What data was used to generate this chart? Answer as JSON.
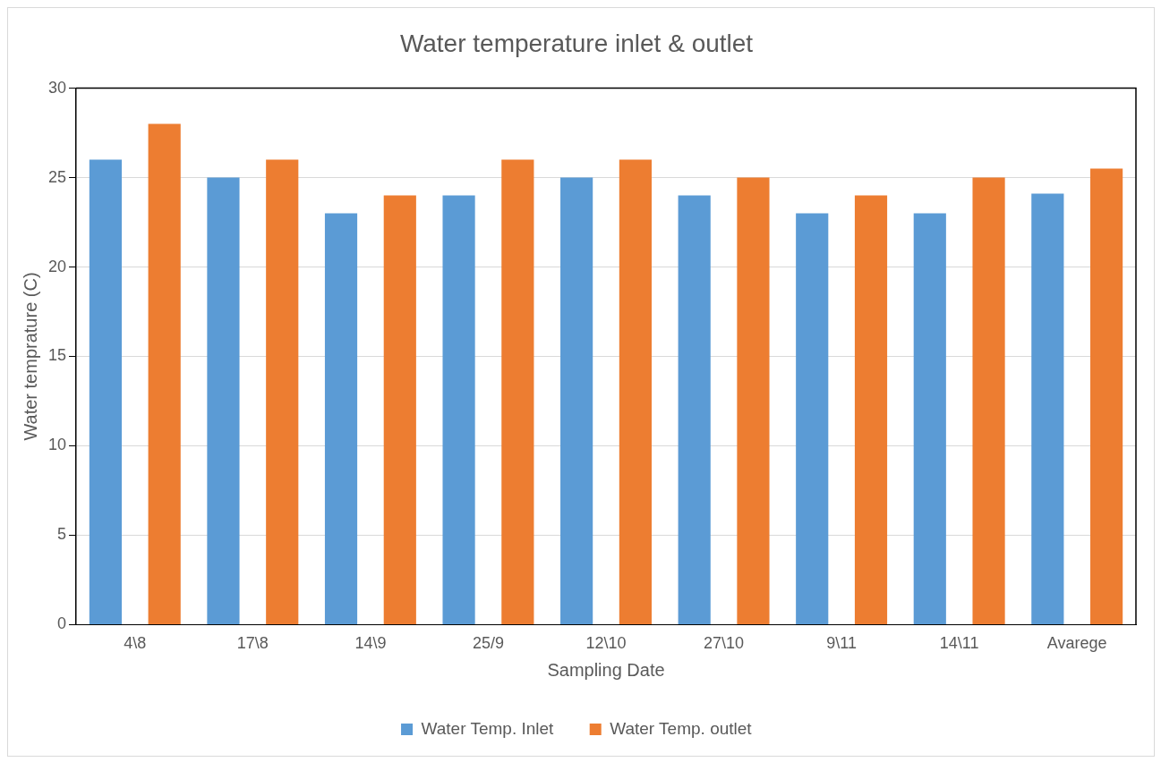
{
  "chart_data": {
    "type": "bar",
    "title": "Water temperature inlet & outlet",
    "xlabel": "Sampling Date",
    "ylabel": "Water temprature (C)",
    "categories": [
      "4\\8",
      "17\\8",
      "14\\9",
      "25/9",
      "12\\10",
      "27\\10",
      "9\\11",
      "14\\11",
      "Avarege"
    ],
    "series": [
      {
        "name": "Water Temp. Inlet",
        "color": "#5b9bd5",
        "values": [
          26,
          25,
          23,
          24,
          25,
          24,
          23,
          23,
          24.1
        ]
      },
      {
        "name": "Water Temp. outlet",
        "color": "#ed7d31",
        "values": [
          28,
          26,
          24,
          26,
          26,
          25,
          24,
          25,
          25.5
        ]
      }
    ],
    "ylim": [
      0,
      30
    ],
    "yticks": [
      0,
      5,
      10,
      15,
      20,
      25,
      30
    ],
    "grid": "y",
    "legend": "bottom"
  }
}
